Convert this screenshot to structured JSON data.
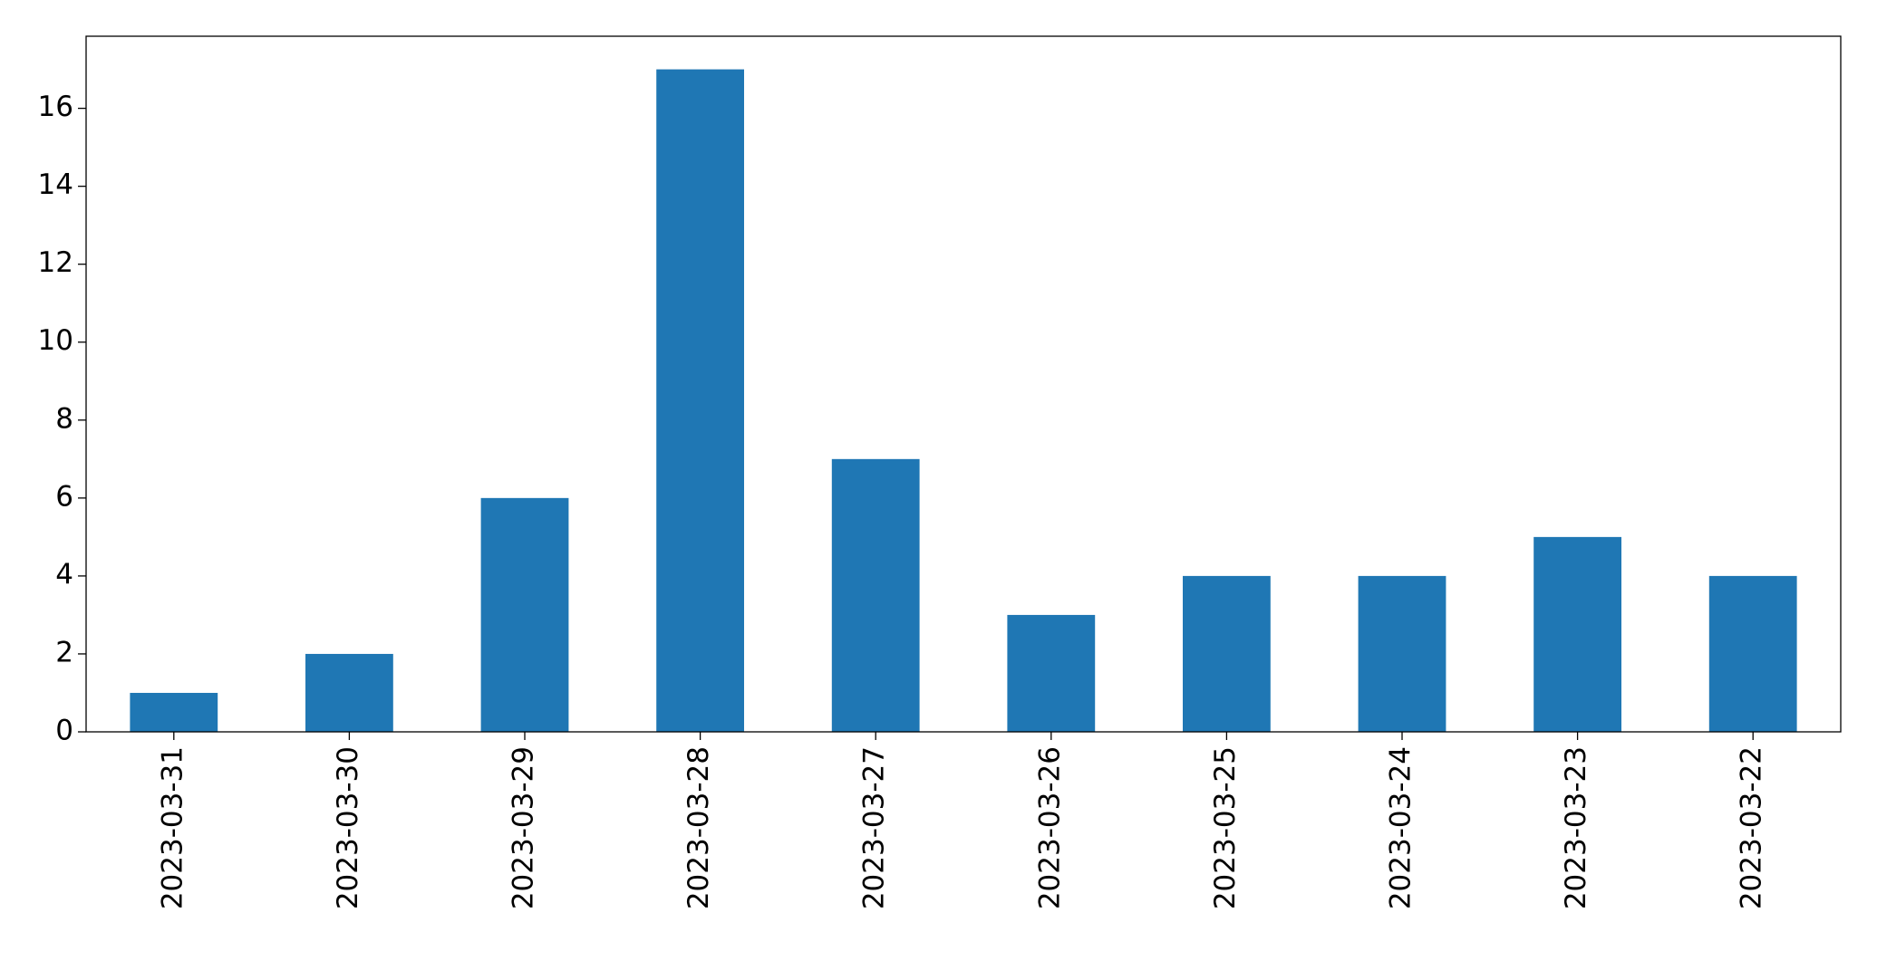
{
  "chart_data": {
    "type": "bar",
    "categories": [
      "2023-03-31",
      "2023-03-30",
      "2023-03-29",
      "2023-03-28",
      "2023-03-27",
      "2023-03-26",
      "2023-03-25",
      "2023-03-24",
      "2023-03-23",
      "2023-03-22"
    ],
    "values": [
      1,
      2,
      6,
      17,
      7,
      3,
      4,
      4,
      5,
      4
    ],
    "color": "#1f77b4",
    "ylim": [
      0,
      17.85
    ],
    "yticks": [
      0,
      2,
      4,
      6,
      8,
      10,
      12,
      14,
      16
    ],
    "grid": false
  }
}
